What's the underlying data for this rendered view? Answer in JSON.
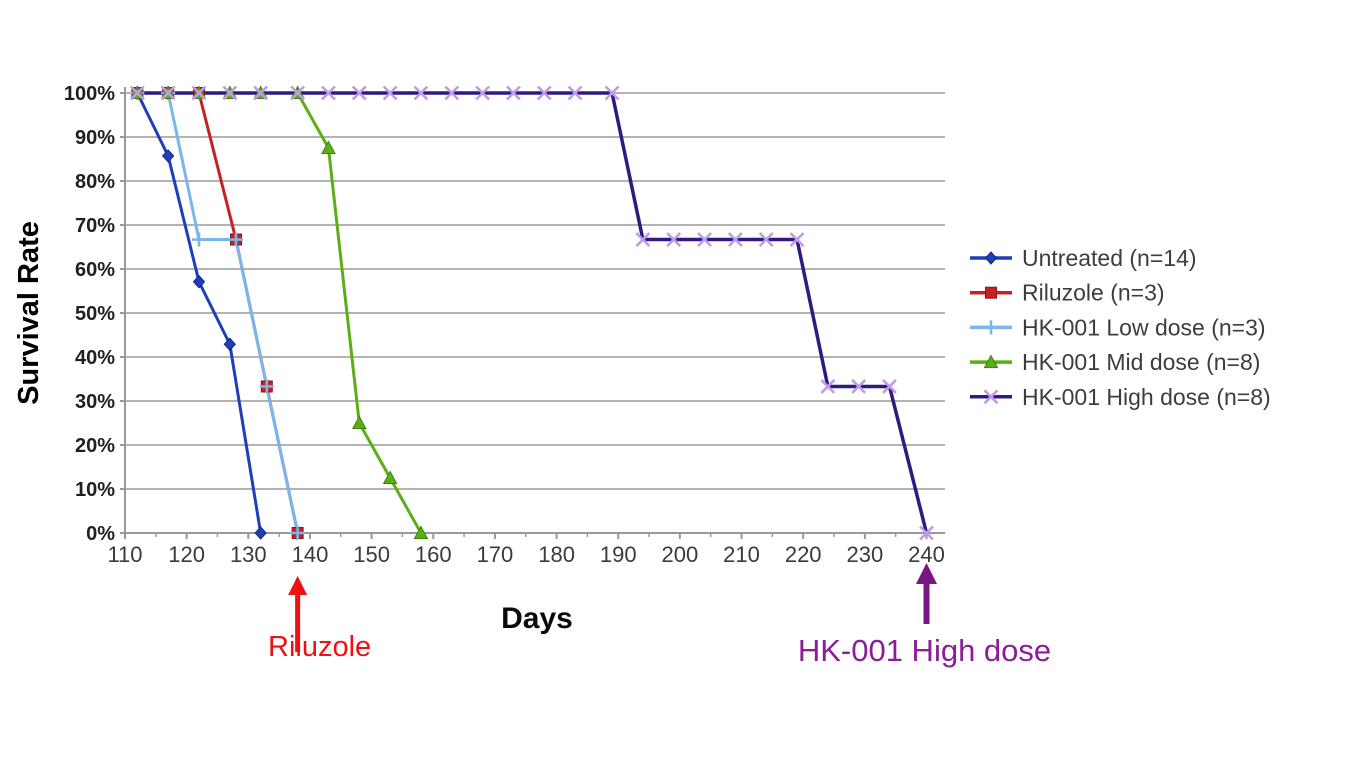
{
  "page": {
    "background": "#ffffff"
  },
  "chart_data": {
    "type": "line",
    "subtype": "survival-curve",
    "title": "",
    "xlabel": "Days",
    "ylabel": "Survival Rate",
    "xlim": [
      110,
      243
    ],
    "ylim": [
      0,
      100
    ],
    "grid": "horizontal",
    "grid_color": "#a8a8a8",
    "axis_color": "#999999",
    "x_major_ticks": [
      110,
      120,
      130,
      140,
      150,
      160,
      170,
      180,
      190,
      200,
      210,
      220,
      230,
      240
    ],
    "x_minor_step": 5,
    "y_ticks": [
      {
        "value": 0,
        "label": "0%"
      },
      {
        "value": 10,
        "label": "10%"
      },
      {
        "value": 20,
        "label": "20%"
      },
      {
        "value": 30,
        "label": "30%"
      },
      {
        "value": 40,
        "label": "40%"
      },
      {
        "value": 50,
        "label": "50%"
      },
      {
        "value": 60,
        "label": "60%"
      },
      {
        "value": 70,
        "label": "70%"
      },
      {
        "value": 80,
        "label": "80%"
      },
      {
        "value": 90,
        "label": "90%"
      },
      {
        "value": 100,
        "label": "100%"
      }
    ],
    "legend_position": "right",
    "series": [
      {
        "name": "Untreated (n=14)",
        "color": "#1e3fba",
        "marker": "diamond",
        "marker_color": "#1e3fba",
        "marker_edge": "#14287f",
        "line_width": 3,
        "points": [
          [
            112,
            100
          ],
          [
            117,
            85.7
          ],
          [
            122,
            57.1
          ],
          [
            127,
            42.9
          ],
          [
            132,
            0
          ]
        ]
      },
      {
        "name": "Riluzole (n=3)",
        "color": "#c42222",
        "marker": "square",
        "marker_color": "#c42222",
        "marker_edge": "#8f1414",
        "line_width": 3,
        "points": [
          [
            112,
            100
          ],
          [
            117,
            100
          ],
          [
            122,
            100
          ],
          [
            128,
            66.7
          ],
          [
            133,
            33.3
          ],
          [
            138,
            0
          ]
        ]
      },
      {
        "name": "HK-001 Low dose (n=3)",
        "color": "#7ab6ea",
        "marker": "plus",
        "marker_color": "#7ab6ea",
        "marker_edge": "#7ab6ea",
        "line_width": 3,
        "points": [
          [
            112,
            100
          ],
          [
            117,
            100
          ],
          [
            122,
            66.7
          ],
          [
            128,
            66.7
          ],
          [
            133,
            33.3
          ],
          [
            138,
            0
          ]
        ]
      },
      {
        "name": "HK-001 Mid dose (n=8)",
        "color": "#5baf16",
        "marker": "triangle",
        "marker_color": "#5baf16",
        "marker_edge": "#3f820c",
        "line_width": 3,
        "points": [
          [
            112,
            100
          ],
          [
            117,
            100
          ],
          [
            122,
            100
          ],
          [
            127,
            100
          ],
          [
            132,
            100
          ],
          [
            138,
            100
          ],
          [
            143,
            87.5
          ],
          [
            148,
            25
          ],
          [
            153,
            12.5
          ],
          [
            158,
            0
          ]
        ]
      },
      {
        "name": "HK-001 High dose (n=8)",
        "color": "#2c1c7f",
        "marker": "xmark",
        "marker_color": "#c29be8",
        "marker_edge": "#c29be8",
        "line_width": 3.5,
        "points": [
          [
            112,
            100
          ],
          [
            117,
            100
          ],
          [
            122,
            100
          ],
          [
            127,
            100
          ],
          [
            132,
            100
          ],
          [
            138,
            100
          ],
          [
            143,
            100
          ],
          [
            148,
            100
          ],
          [
            153,
            100
          ],
          [
            158,
            100
          ],
          [
            163,
            100
          ],
          [
            168,
            100
          ],
          [
            173,
            100
          ],
          [
            178,
            100
          ],
          [
            183,
            100
          ],
          [
            189,
            100
          ],
          [
            194,
            66.7
          ],
          [
            199,
            66.7
          ],
          [
            204,
            66.7
          ],
          [
            209,
            66.7
          ],
          [
            214,
            66.7
          ],
          [
            219,
            66.7
          ],
          [
            224,
            33.3
          ],
          [
            229,
            33.3
          ],
          [
            234,
            33.3
          ],
          [
            240,
            0
          ]
        ]
      }
    ],
    "annotations": [
      {
        "id": "riluzole",
        "text": "Riluzole",
        "text_color": "#ee1111",
        "arrow_color": "#ee1111",
        "arrow_day": 138
      },
      {
        "id": "highdose",
        "text": "HK-001 High dose",
        "text_color": "#8c1d97",
        "arrow_color": "#7b1586",
        "arrow_day": 240
      }
    ]
  }
}
